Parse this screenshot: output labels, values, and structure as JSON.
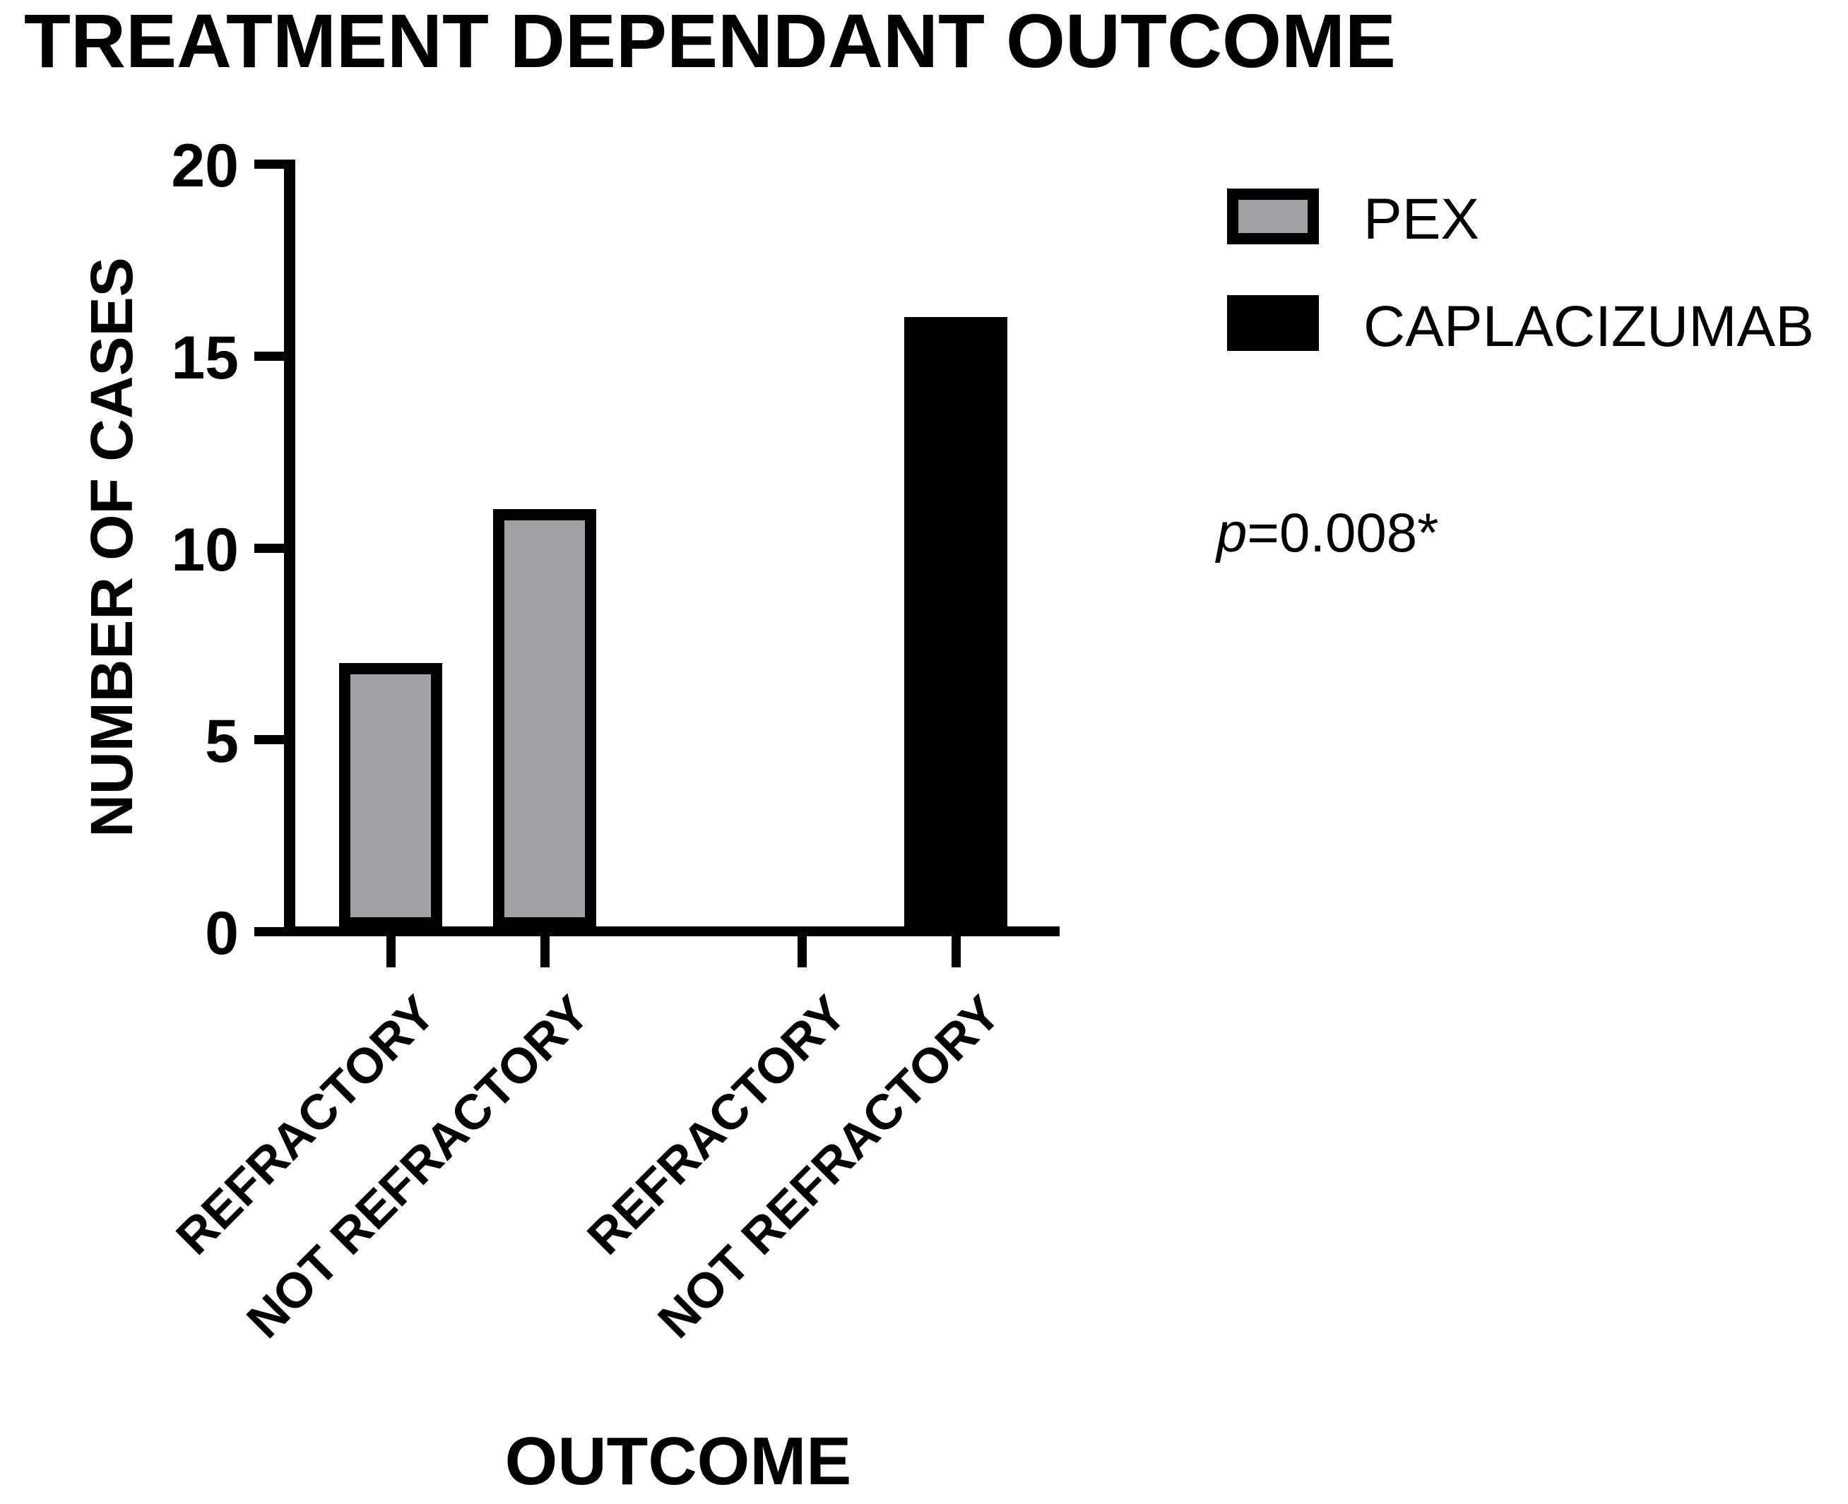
{
  "figure": {
    "background_color": "#ffffff",
    "text_color": "#000000"
  },
  "chart_data": {
    "type": "bar",
    "title": "TREATMENT DEPENDANT OUTCOME",
    "xlabel": "OUTCOME",
    "ylabel": "NUMBER OF CASES",
    "ylim": [
      0,
      20
    ],
    "yticks": [
      0,
      5,
      10,
      15,
      20
    ],
    "categories": [
      "REFRACTORY",
      "NOT REFRACTORY",
      "REFRACTORY",
      "NOT REFRACTORY"
    ],
    "values": [
      7,
      11,
      0,
      16
    ],
    "bar_groups": [
      "PEX",
      "PEX",
      "CAPLACIZUMAB",
      "CAPLACIZUMAB"
    ],
    "bar_fill_colors": [
      "#a1a1a6",
      "#a1a1a6",
      "#000000",
      "#000000"
    ],
    "bar_border_color": "#000000",
    "grid": false,
    "legend_position": "top-right",
    "legend": [
      {
        "label": "PEX",
        "fill": "#a1a1a6",
        "border": "#000000"
      },
      {
        "label": "CAPLACIZUMAB",
        "fill": "#000000",
        "border": "#000000"
      }
    ],
    "annotation": {
      "p_symbol": "p",
      "p_rest": "=0.008*",
      "full": "p=0.008*"
    }
  }
}
